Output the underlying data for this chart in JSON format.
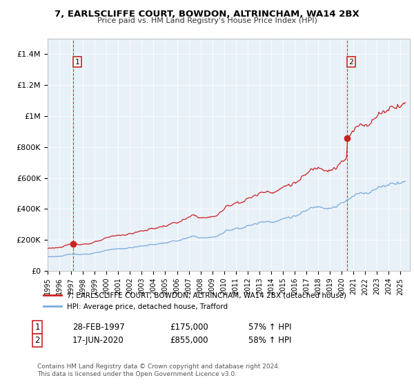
{
  "title": "7, EARLSCLIFFE COURT, BOWDON, ALTRINCHAM, WA14 2BX",
  "subtitle": "Price paid vs. HM Land Registry's House Price Index (HPI)",
  "ylabel_ticks": [
    "£0",
    "£200K",
    "£400K",
    "£600K",
    "£800K",
    "£1M",
    "£1.2M",
    "£1.4M"
  ],
  "ytick_values": [
    0,
    200000,
    400000,
    600000,
    800000,
    1000000,
    1200000,
    1400000
  ],
  "ylim": [
    0,
    1500000
  ],
  "xlim_start": 1995.0,
  "xlim_end": 2025.8,
  "sale1_year": 1997.16,
  "sale1_price": 175000,
  "sale2_year": 2020.46,
  "sale2_price": 855000,
  "vline_color": "#cc2222",
  "hpi_color": "#7aaadd",
  "property_color": "#cc2222",
  "legend_property": "7, EARLSCLIFFE COURT, BOWDON, ALTRINCHAM, WA14 2BX (detached house)",
  "legend_hpi": "HPI: Average price, detached house, Trafford",
  "annotation1": [
    "1",
    "28-FEB-1997",
    "£175,000",
    "57% ↑ HPI"
  ],
  "annotation2": [
    "2",
    "17-JUN-2020",
    "£855,000",
    "58% ↑ HPI"
  ],
  "footer": "Contains HM Land Registry data © Crown copyright and database right 2024.\nThis data is licensed under the Open Government Licence v3.0.",
  "background_color": "#ffffff",
  "plot_bg_color": "#e8f0f8",
  "grid_color": "#ffffff"
}
